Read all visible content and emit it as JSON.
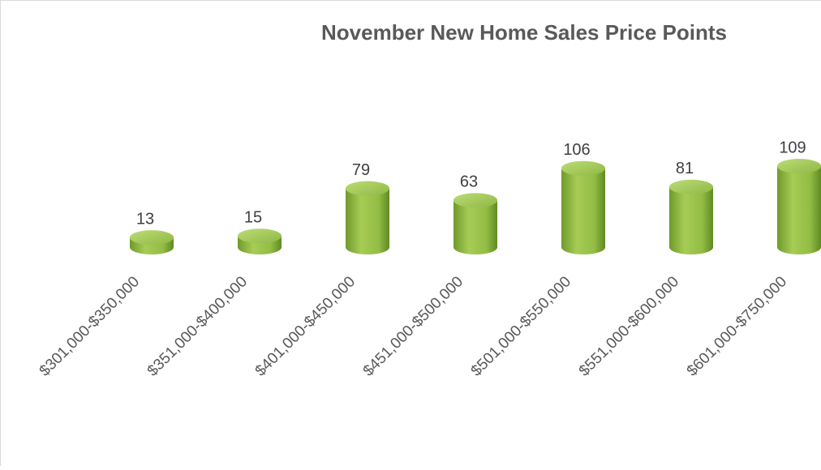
{
  "chart_data": {
    "type": "bar",
    "title": "November New Home Sales Price Points",
    "categories": [
      "$301,000-$350,000",
      "$351,000-$400,000",
      "$401,000-$450,000",
      "$451,000-$500,000",
      "$501,000-$550,000",
      "$551,000-$600,000",
      "$601,000-$750,000"
    ],
    "values": [
      13,
      15,
      79,
      63,
      106,
      81,
      109
    ],
    "color": "#8db43e"
  }
}
